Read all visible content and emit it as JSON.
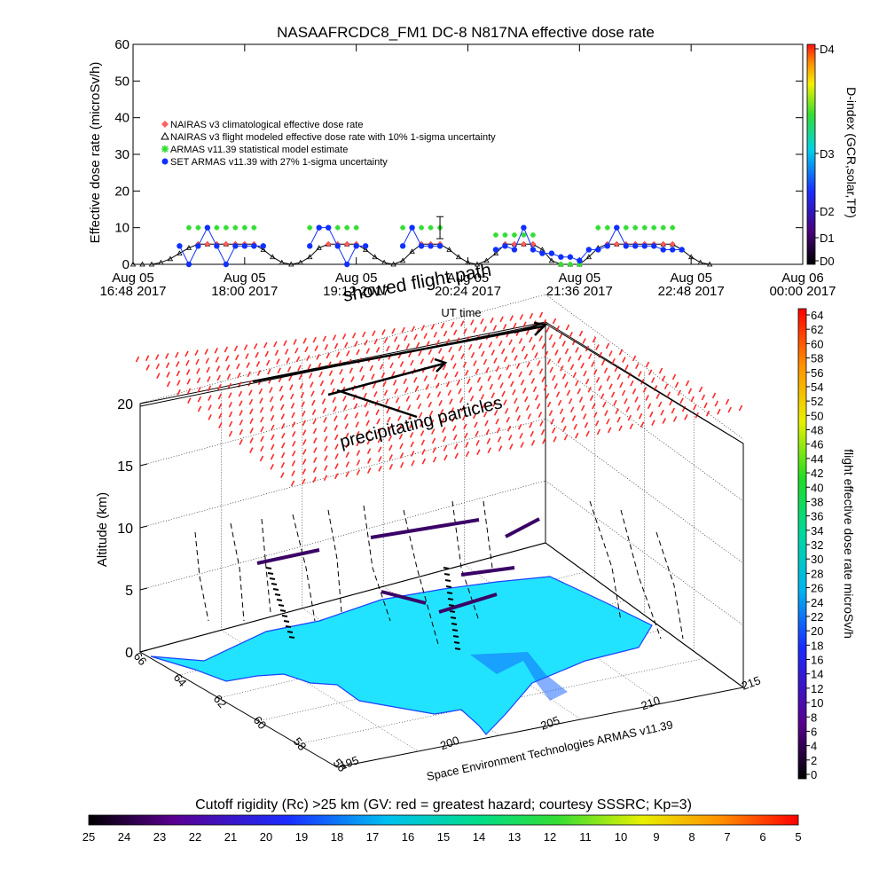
{
  "header": {
    "title": "NASAAFRCDC8_FM1 DC-8    N817NA effective dose rate"
  },
  "chart_data": [
    {
      "type": "line",
      "ylabel": "Effective dose rate (microSv/h)",
      "xlabel": "UT time",
      "ylim": [
        0,
        60
      ],
      "yticks": [
        "0",
        "10",
        "20",
        "30",
        "40",
        "50",
        "60"
      ],
      "xticks": [
        {
          "top": "Aug 05",
          "bottom": "16:48 2017"
        },
        {
          "top": "Aug 05",
          "bottom": "18:00 2017"
        },
        {
          "top": "Aug 05",
          "bottom": "19:12 2017"
        },
        {
          "top": "Aug 05",
          "bottom": "20:24 2017"
        },
        {
          "top": "Aug 05",
          "bottom": "21:36 2017"
        },
        {
          "top": "Aug 05",
          "bottom": "22:48 2017"
        },
        {
          "top": "Aug 06",
          "bottom": "00:00 2017"
        }
      ],
      "x_hours": [
        0,
        0.1,
        0.2,
        0.3,
        0.4,
        0.5,
        0.6,
        0.7,
        0.8,
        0.9,
        1.0,
        1.1,
        1.2,
        1.3,
        1.4,
        1.5,
        1.6,
        1.7,
        1.8,
        1.9,
        2.0,
        2.1,
        2.2,
        2.3,
        2.4,
        2.5,
        2.6,
        2.7,
        2.8,
        2.9,
        3.0,
        3.1,
        3.2,
        3.3,
        3.4,
        3.5,
        3.6,
        3.7,
        3.8,
        3.9,
        4.0,
        4.1,
        4.2,
        4.3,
        4.4,
        4.5,
        4.6,
        4.7,
        4.8,
        4.9,
        5.0,
        5.1,
        5.2,
        5.3,
        5.4,
        5.5,
        5.6,
        5.7,
        5.8,
        5.9,
        6.0,
        6.1,
        6.2
      ],
      "series": [
        {
          "name": "NAIRAS v3 climatological effective dose rate",
          "color": "#ff6060",
          "values": [
            0,
            0,
            0,
            0.5,
            1.5,
            3,
            4.5,
            5.5,
            5.5,
            5.5,
            5.5,
            5.5,
            5.5,
            5.5,
            4,
            2,
            0.5,
            0,
            0.5,
            2,
            4.5,
            5.5,
            5.5,
            5.5,
            5.5,
            4,
            2,
            0.5,
            0,
            1,
            3.5,
            5.5,
            5.5,
            5.5,
            4,
            2,
            0.5,
            0,
            1,
            3,
            5.5,
            5.5,
            5.5,
            5.5,
            4,
            1,
            0,
            0,
            0,
            2,
            4.5,
            5.5,
            5.5,
            5.5,
            5.5,
            5.5,
            5.5,
            5.5,
            5.5,
            4,
            2,
            0.5,
            0
          ]
        },
        {
          "name": "NAIRAS v3 flight modeled effective dose rate with 10% 1-sigma uncertainty",
          "color": "#000000",
          "values": [
            0,
            0,
            0,
            0.5,
            1.5,
            3,
            4.5,
            5.5,
            5.5,
            5.5,
            5.5,
            5.5,
            5.5,
            5.5,
            4,
            2,
            0.5,
            0,
            0.5,
            2,
            4.5,
            5.5,
            5.5,
            5.5,
            5.5,
            4,
            2,
            0.5,
            0,
            1,
            3.5,
            5.5,
            5.5,
            5.5,
            4,
            2,
            0.5,
            0,
            1,
            3,
            5.5,
            5.5,
            5.5,
            5.5,
            4,
            1,
            0,
            0,
            0,
            2,
            4.5,
            5.5,
            5.5,
            5.5,
            5.5,
            5.5,
            5.5,
            5.5,
            5.5,
            4,
            2,
            0.5,
            0
          ]
        },
        {
          "name": "ARMAS v11.39 statistical model estimate",
          "color": "#33dd33",
          "values": [
            null,
            null,
            null,
            null,
            null,
            null,
            10,
            10,
            10,
            10,
            10,
            10,
            10,
            10,
            null,
            null,
            null,
            null,
            null,
            10,
            10,
            10,
            10,
            10,
            10,
            null,
            null,
            null,
            null,
            10,
            10,
            10,
            10,
            10,
            null,
            null,
            null,
            null,
            null,
            8,
            8,
            8,
            8,
            8,
            null,
            null,
            0,
            0,
            0,
            null,
            10,
            10,
            10,
            10,
            10,
            10,
            10,
            10,
            10,
            null,
            null,
            null,
            null
          ]
        },
        {
          "name": "SET ARMAS v11.39 with 27% 1-sigma uncertainty",
          "color": "#1030ff",
          "values": [
            null,
            null,
            null,
            null,
            null,
            5,
            0,
            5,
            10,
            5,
            0,
            5,
            5,
            5,
            5,
            null,
            null,
            null,
            null,
            5,
            10,
            10,
            5,
            0,
            5,
            5,
            null,
            null,
            null,
            5,
            10,
            5,
            5,
            5,
            null,
            null,
            null,
            null,
            null,
            4,
            5,
            4,
            10,
            4,
            3,
            3,
            2,
            2,
            1,
            4,
            4,
            5,
            10,
            5,
            5,
            5,
            5,
            4,
            4,
            4,
            null,
            null,
            null
          ]
        }
      ],
      "errorbar": {
        "x_hour": 3.3,
        "value": 10,
        "low": 7,
        "high": 13
      }
    },
    {
      "type": "surface3d",
      "zlabel": "Altitude (km)",
      "zticks": [
        "0",
        "5",
        "10",
        "15",
        "20"
      ],
      "lat_ticks": [
        "66",
        "64",
        "62",
        "60",
        "58",
        "56"
      ],
      "lon_ticks": [
        "195",
        "200",
        "205",
        "210",
        "215"
      ],
      "annotations": [
        "showed flight path",
        "precipitating particles"
      ],
      "credit": "Space Environment Technologies ARMAS v11.39"
    }
  ],
  "colorbars": {
    "dindex": {
      "label": "D-index (GCR,solar,TP)",
      "ticks": [
        "D4",
        "D3",
        "D2",
        "D1",
        "D0"
      ]
    },
    "dose": {
      "label": "flight effective dose rate microSv/h",
      "ticks": [
        "64",
        "62",
        "60",
        "58",
        "56",
        "54",
        "52",
        "50",
        "48",
        "46",
        "44",
        "42",
        "40",
        "38",
        "36",
        "34",
        "32",
        "30",
        "28",
        "26",
        "24",
        "22",
        "20",
        "18",
        "16",
        "14",
        "12",
        "10",
        "8",
        "6",
        "4",
        "2",
        "0"
      ]
    },
    "cutoff": {
      "label": "Cutoff rigidity (Rc) >25 km (GV: red = greatest hazard; courtesy SSSRC; Kp=3)",
      "ticks": [
        "25",
        "24",
        "23",
        "22",
        "21",
        "20",
        "19",
        "18",
        "17",
        "16",
        "15",
        "14",
        "13",
        "12",
        "11",
        "10",
        "9",
        "8",
        "7",
        "6",
        "5"
      ]
    }
  }
}
